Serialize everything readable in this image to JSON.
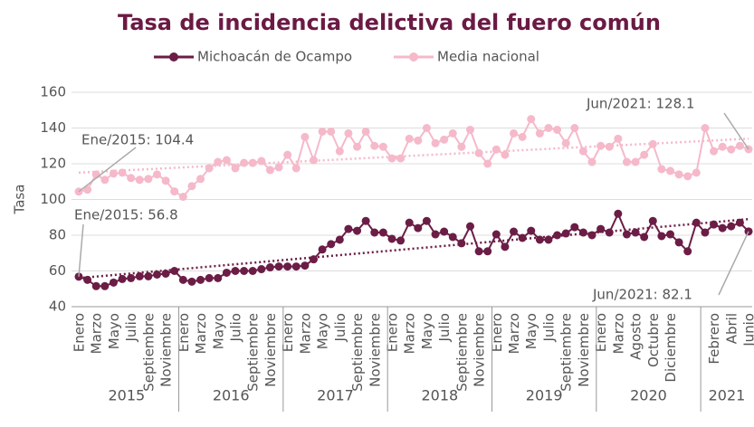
{
  "chart_data": {
    "type": "line",
    "title": "Tasa de incidencia delictiva del fuero común",
    "y_label": "Tasa",
    "categories": [
      "Enero",
      null,
      "Marzo",
      null,
      "Mayo",
      null,
      "Julio",
      null,
      "Septiembre",
      null,
      "Noviembre",
      null,
      "Enero",
      null,
      "Marzo",
      null,
      "Mayo",
      null,
      "Julio",
      null,
      "Septiembre",
      null,
      "Noviembre",
      null,
      "Enero",
      null,
      "Marzo",
      null,
      "Mayo",
      null,
      "Julio",
      null,
      "Septiembre",
      null,
      "Noviembre",
      null,
      "Enero",
      null,
      "Marzo",
      null,
      "Mayo",
      null,
      "Julio",
      null,
      "Septiembre",
      null,
      "Noviembre",
      null,
      "Enero",
      null,
      "Marzo",
      null,
      "Mayo",
      null,
      "Julio",
      null,
      "Septiembre",
      null,
      "Noviembre",
      null,
      "Enero",
      null,
      "Marzo",
      null,
      "Agosto",
      null,
      "Octubre",
      null,
      "Diciembre",
      null,
      null,
      null,
      null,
      "Febrero",
      null,
      "Abril",
      null,
      "Junio"
    ],
    "years": [
      {
        "name": "2015",
        "months": 12
      },
      {
        "name": "2016",
        "months": 12
      },
      {
        "name": "2017",
        "months": 12
      },
      {
        "name": "2018",
        "months": 12
      },
      {
        "name": "2019",
        "months": 12
      },
      {
        "name": "2020",
        "months": 12
      },
      {
        "name": "2021",
        "months": 6
      }
    ],
    "series": [
      {
        "name": "Michoacán de Ocampo",
        "color": "#6b1d45",
        "trend": [
          56,
          89
        ],
        "values": [
          56.8,
          55,
          51.5,
          51.5,
          53.5,
          55.5,
          56,
          57,
          57,
          58,
          58.5,
          60,
          55,
          54,
          55,
          56,
          56,
          59,
          60,
          60,
          60,
          61,
          62,
          62.5,
          62.5,
          62.5,
          63,
          66.5,
          72,
          75,
          77.5,
          83.5,
          82.5,
          88,
          81.5,
          81.5,
          78,
          77,
          87,
          84,
          88,
          80.5,
          82,
          79,
          75.5,
          85,
          71,
          71,
          80.5,
          73.5,
          82,
          78.5,
          82.5,
          77.5,
          77.5,
          80,
          81,
          84.5,
          81.5,
          80,
          83.5,
          81.5,
          92,
          80.5,
          81.5,
          79,
          88,
          79.5,
          80.5,
          76,
          71,
          87,
          81.5,
          86,
          84,
          85,
          87,
          82.1
        ]
      },
      {
        "name": "Media nacional",
        "color": "#f5b9ca",
        "trend": [
          115,
          134
        ],
        "values": [
          104.4,
          105.5,
          114,
          111,
          114.5,
          115,
          112,
          111,
          111.5,
          114,
          110.5,
          104.5,
          101.5,
          107.5,
          111.5,
          117.5,
          121,
          122,
          117.5,
          120.5,
          120.5,
          121.5,
          116.5,
          118,
          125,
          117.5,
          135,
          122,
          138,
          138,
          127,
          137,
          129.5,
          138,
          130,
          129.5,
          123,
          123,
          134,
          133,
          140,
          131.5,
          133.5,
          137,
          129.5,
          139,
          126,
          120,
          128,
          125,
          137,
          135,
          145,
          137,
          140,
          139,
          131.5,
          140,
          127,
          121,
          130,
          129.5,
          134,
          121,
          121,
          125,
          131,
          117,
          116,
          114,
          113,
          115,
          140,
          127,
          129.5,
          128,
          130,
          128.1
        ]
      }
    ],
    "annotations": [
      "Ene/2015: 104.4",
      "Ene/2015: 56.8",
      "Jun/2021: 128.1",
      "Jun/2021: 82.1"
    ],
    "ylim": [
      40,
      160
    ],
    "yticks": [
      40,
      60,
      80,
      100,
      120,
      140,
      160
    ],
    "grid": true
  }
}
